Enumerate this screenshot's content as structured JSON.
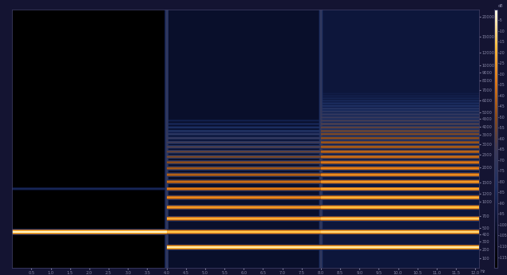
{
  "chart_data": {
    "type": "spectrogram",
    "xlim": [
      0,
      12.1
    ],
    "xticks": [
      0.5,
      1.0,
      1.5,
      2.0,
      2.5,
      3.0,
      3.5,
      4.0,
      4.5,
      5.0,
      5.5,
      6.0,
      6.5,
      7.0,
      7.5,
      8.0,
      8.5,
      9.0,
      9.5,
      10.0,
      10.5,
      11.0,
      11.5,
      12.0
    ],
    "ylim": [
      0,
      22050
    ],
    "yticks": [
      100,
      200,
      300,
      400,
      500,
      700,
      1000,
      1200,
      1500,
      2000,
      2500,
      3000,
      3500,
      4000,
      4500,
      5000,
      6000,
      7000,
      8000,
      9000,
      10000,
      12000,
      15000,
      20000
    ],
    "y_unit_label": "Hz",
    "colorbar_label": "dB",
    "colorbar_lim": [
      -120,
      0
    ],
    "colorbar_ticks": [
      -5,
      -10,
      -15,
      -20,
      -25,
      -30,
      -35,
      -40,
      -45,
      -50,
      -55,
      -60,
      -65,
      -70,
      -75,
      -80,
      -85,
      -90,
      -95,
      -100,
      -105,
      -110,
      -115
    ],
    "segments": [
      {
        "start": 0,
        "end": 4.0,
        "floor": -120,
        "partials": [
          {
            "freq": 440,
            "level": -3
          },
          {
            "freq": 1320,
            "level": -85
          }
        ]
      },
      {
        "start": 4.0,
        "end": 8.0,
        "floor": -100,
        "partials": [
          {
            "freq": 220,
            "level": -6
          },
          {
            "freq": 440,
            "level": -14
          },
          {
            "freq": 660,
            "level": -20
          },
          {
            "freq": 880,
            "level": -25
          },
          {
            "freq": 1100,
            "level": -29
          },
          {
            "freq": 1320,
            "level": -33
          },
          {
            "freq": 1540,
            "level": -37
          },
          {
            "freq": 1760,
            "level": -41
          },
          {
            "freq": 1980,
            "level": -45
          },
          {
            "freq": 2200,
            "level": -49
          },
          {
            "freq": 2420,
            "level": -53
          },
          {
            "freq": 2640,
            "level": -57
          },
          {
            "freq": 2860,
            "level": -61
          },
          {
            "freq": 3080,
            "level": -65
          },
          {
            "freq": 3300,
            "level": -69
          },
          {
            "freq": 3520,
            "level": -73
          },
          {
            "freq": 3740,
            "level": -77
          },
          {
            "freq": 3960,
            "level": -81
          },
          {
            "freq": 4180,
            "level": -85
          },
          {
            "freq": 4400,
            "level": -89
          }
        ]
      },
      {
        "start": 8.0,
        "end": 12.1,
        "floor": -95,
        "partials": [
          {
            "freq": 220,
            "level": -6
          },
          {
            "freq": 440,
            "level": -10
          },
          {
            "freq": 660,
            "level": -13
          },
          {
            "freq": 880,
            "level": -16
          },
          {
            "freq": 1100,
            "level": -19
          },
          {
            "freq": 1320,
            "level": -22
          },
          {
            "freq": 1540,
            "level": -25
          },
          {
            "freq": 1760,
            "level": -28
          },
          {
            "freq": 1980,
            "level": -31
          },
          {
            "freq": 2200,
            "level": -34
          },
          {
            "freq": 2420,
            "level": -37
          },
          {
            "freq": 2640,
            "level": -40
          },
          {
            "freq": 2860,
            "level": -43
          },
          {
            "freq": 3080,
            "level": -46
          },
          {
            "freq": 3300,
            "level": -49
          },
          {
            "freq": 3520,
            "level": -52
          },
          {
            "freq": 3740,
            "level": -55
          },
          {
            "freq": 3960,
            "level": -58
          },
          {
            "freq": 4180,
            "level": -61
          },
          {
            "freq": 4400,
            "level": -64
          },
          {
            "freq": 4620,
            "level": -67
          },
          {
            "freq": 4840,
            "level": -70
          },
          {
            "freq": 5060,
            "level": -73
          },
          {
            "freq": 5280,
            "level": -76
          },
          {
            "freq": 5500,
            "level": -79
          },
          {
            "freq": 5720,
            "level": -82
          },
          {
            "freq": 5940,
            "level": -85
          },
          {
            "freq": 6160,
            "level": -88
          },
          {
            "freq": 6380,
            "level": -91
          },
          {
            "freq": 6600,
            "level": -94
          }
        ]
      }
    ],
    "transients": [
      {
        "time": 4.0,
        "level": -70
      },
      {
        "time": 8.0,
        "level": -70
      }
    ]
  }
}
